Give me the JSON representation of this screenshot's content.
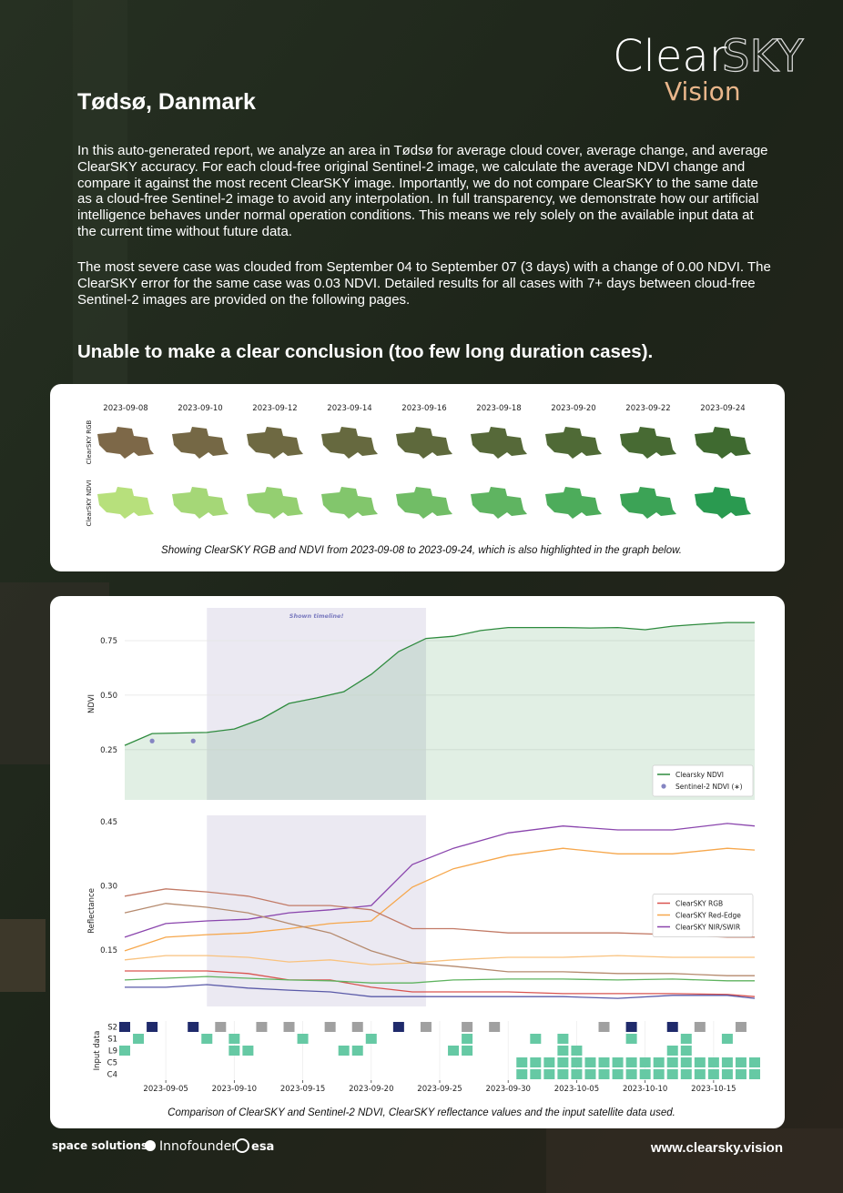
{
  "header": {
    "logo_main_1": "Clear",
    "logo_main_2": "SKY",
    "logo_sub": "Vision",
    "title": "Tødsø, Danmark"
  },
  "paragraphs": [
    "In this auto-generated report, we analyze an area in Tødsø for average cloud cover, average change, and average ClearSKY accuracy. For each cloud-free original Sentinel-2 image, we calculate the average NDVI change and compare it against the most recent ClearSKY image. Importantly, we do not compare ClearSKY to the same date as a cloud-free Sentinel-2 image to avoid any interpolation. In full transparency, we demonstrate how our artificial intelligence behaves under normal operation conditions. This means we rely solely on the available input data at the current time without future data.",
    "The most severe case was clouded from September 04 to September 07 (3 days) with a change of 0.00 NDVI. The ClearSKY error for the same case was 0.03 NDVI. Detailed results for all cases with 7+ days between cloud-free Sentinel-2 images are provided on the following pages."
  ],
  "conclusion": "Unable to make a clear conclusion (too few long duration cases).",
  "figure_1": {
    "dates": [
      "2023-09-08",
      "2023-09-10",
      "2023-09-12",
      "2023-09-14",
      "2023-09-16",
      "2023-09-18",
      "2023-09-20",
      "2023-09-22",
      "2023-09-24"
    ],
    "row_labels": [
      "ClearSKY RGB",
      "ClearSKY NDVI"
    ],
    "caption": "Showing ClearSKY RGB and NDVI from 2023-09-08 to 2023-09-24, which is also highlighted in the graph below."
  },
  "chart_data": [
    {
      "type": "line",
      "y_label": "NDVI",
      "annotation": "Shown timeline!",
      "highlight": [
        "2023-09-08",
        "2023-09-24"
      ],
      "xlim": [
        "2023-09-02",
        "2023-10-18"
      ],
      "ylim": [
        0.02,
        0.9
      ],
      "yticks": [
        0.25,
        {
          "value": 0.5,
          "label": "0.50"
        },
        0.75
      ],
      "grid": true,
      "legend": "lower right",
      "series": [
        {
          "name": "Clearsky NDVI",
          "color": "#2e8b3e",
          "fill": true,
          "x": [
            "2023-09-02",
            "2023-09-04",
            "2023-09-08",
            "2023-09-10",
            "2023-09-12",
            "2023-09-14",
            "2023-09-16",
            "2023-09-18",
            "2023-09-20",
            "2023-09-22",
            "2023-09-24",
            "2023-09-26",
            "2023-09-28",
            "2023-09-30",
            "2023-10-04",
            "2023-10-06",
            "2023-10-08",
            "2023-10-10",
            "2023-10-12",
            "2023-10-14",
            "2023-10-16",
            "2023-10-18"
          ],
          "values": [
            0.27,
            0.324,
            0.329,
            0.345,
            0.391,
            0.462,
            0.487,
            0.516,
            0.595,
            0.7,
            0.76,
            0.77,
            0.796,
            0.81,
            0.81,
            0.808,
            0.81,
            0.8,
            0.816,
            0.825,
            0.833,
            0.833
          ]
        },
        {
          "name": "Sentinel-2 NDVI (∗)",
          "color": "#8585c2",
          "type": "scatter",
          "x": [
            "2023-09-04",
            "2023-09-07"
          ],
          "values": [
            0.29,
            0.29
          ]
        }
      ]
    },
    {
      "type": "line",
      "y_label": "Reflectance",
      "highlight": [
        "2023-09-08",
        "2023-09-24"
      ],
      "xlim": [
        "2023-09-02",
        "2023-10-18"
      ],
      "ylim": [
        0.018,
        0.465
      ],
      "yticks": [
        0.15,
        {
          "value": 0.3,
          "label": "0.30"
        },
        0.45
      ],
      "grid": false,
      "legend": "center right",
      "x": [
        "2023-09-02",
        "2023-09-05",
        "2023-09-08",
        "2023-09-11",
        "2023-09-14",
        "2023-09-17",
        "2023-09-20",
        "2023-09-23",
        "2023-09-26",
        "2023-09-30",
        "2023-10-04",
        "2023-10-08",
        "2023-10-12",
        "2023-10-16",
        "2023-10-18"
      ],
      "series": [
        {
          "name": "ClearSKY RGB",
          "color": "#d9534f",
          "values": [
            0.101,
            0.101,
            0.101,
            0.095,
            0.08,
            0.08,
            0.063,
            0.052,
            0.052,
            0.052,
            0.048,
            0.048,
            0.048,
            0.046,
            0.041
          ]
        },
        {
          "name": "ClearSKY Red-Edge",
          "color": "#f6a74c",
          "values": [
            0.148,
            0.18,
            0.186,
            0.19,
            0.2,
            0.212,
            0.218,
            0.297,
            0.34,
            0.371,
            0.388,
            0.375,
            0.375,
            0.388,
            0.384
          ]
        },
        {
          "name": "ClearSKY NIR/SWIR",
          "color": "#8a45ad",
          "values": [
            0.18,
            0.212,
            0.218,
            0.222,
            0.237,
            0.244,
            0.254,
            0.35,
            0.388,
            0.424,
            0.44,
            0.431,
            0.431,
            0.446,
            0.44
          ]
        },
        {
          "color": "#f9c27e",
          "values": [
            0.127,
            0.137,
            0.137,
            0.133,
            0.122,
            0.127,
            0.116,
            0.12,
            0.127,
            0.133,
            0.133,
            0.137,
            0.133,
            0.133,
            0.133
          ]
        },
        {
          "color": "#c27a66",
          "values": [
            0.276,
            0.293,
            0.286,
            0.276,
            0.254,
            0.254,
            0.244,
            0.2,
            0.2,
            0.19,
            0.19,
            0.19,
            0.186,
            0.18,
            0.18
          ]
        },
        {
          "color": "#b58a6e",
          "values": [
            0.237,
            0.259,
            0.25,
            0.237,
            0.212,
            0.19,
            0.148,
            0.12,
            0.112,
            0.099,
            0.099,
            0.095,
            0.095,
            0.09,
            0.09
          ]
        },
        {
          "color": "#5fb35f",
          "values": [
            0.08,
            0.084,
            0.088,
            0.084,
            0.08,
            0.078,
            0.073,
            0.073,
            0.08,
            0.082,
            0.082,
            0.08,
            0.082,
            0.078,
            0.078
          ]
        },
        {
          "color": "#5a5aa8",
          "values": [
            0.063,
            0.063,
            0.069,
            0.061,
            0.056,
            0.052,
            0.041,
            0.041,
            0.041,
            0.041,
            0.041,
            0.037,
            0.044,
            0.044,
            0.037
          ]
        }
      ]
    },
    {
      "type": "tiles",
      "y_label": "Input data",
      "rows": [
        "S2",
        "S1",
        "L9",
        "C5",
        "C4"
      ],
      "xlim": [
        "2023-09-02",
        "2023-10-18"
      ],
      "xticks": [
        "2023-09-05",
        "2023-09-10",
        "2023-09-15",
        "2023-09-20",
        "2023-09-25",
        "2023-09-30",
        "2023-10-05",
        "2023-10-10",
        "2023-10-15"
      ],
      "series": [
        {
          "row": 0,
          "color": "#a0a0a0",
          "x": [
            "2023-09-09",
            "2023-09-12",
            "2023-09-14",
            "2023-09-17",
            "2023-09-19",
            "2023-09-24",
            "2023-09-27",
            "2023-09-29",
            "2023-10-07",
            "2023-10-14",
            "2023-10-17"
          ]
        },
        {
          "row": 0,
          "color": "#1f2a6b",
          "x": [
            "2023-09-02",
            "2023-09-04",
            "2023-09-07",
            "2023-09-22",
            "2023-10-09",
            "2023-10-12"
          ]
        },
        {
          "row": 1,
          "color": "#66c9a4",
          "x": [
            "2023-09-03",
            "2023-09-08",
            "2023-09-10",
            "2023-09-15",
            "2023-09-20",
            "2023-09-27",
            "2023-10-02",
            "2023-10-04",
            "2023-10-09",
            "2023-10-13",
            "2023-10-16"
          ]
        },
        {
          "row": 2,
          "color": "#66c9a4",
          "x": [
            "2023-09-02",
            "2023-09-10",
            "2023-09-11",
            "2023-09-18",
            "2023-09-19",
            "2023-09-26",
            "2023-09-27",
            "2023-10-04",
            "2023-10-05",
            "2023-10-12",
            "2023-10-13"
          ]
        },
        {
          "row": 3,
          "color": "#66c9a4",
          "x": [
            "2023-10-01",
            "2023-10-02",
            "2023-10-03",
            "2023-10-04",
            "2023-10-05",
            "2023-10-06",
            "2023-10-07",
            "2023-10-08",
            "2023-10-09",
            "2023-10-10",
            "2023-10-11",
            "2023-10-12",
            "2023-10-13",
            "2023-10-14",
            "2023-10-15",
            "2023-10-16",
            "2023-10-17",
            "2023-10-18"
          ]
        },
        {
          "row": 4,
          "color": "#66c9a4",
          "x": [
            "2023-10-01",
            "2023-10-02",
            "2023-10-03",
            "2023-10-04",
            "2023-10-05",
            "2023-10-06",
            "2023-10-07",
            "2023-10-08",
            "2023-10-09",
            "2023-10-10",
            "2023-10-11",
            "2023-10-12",
            "2023-10-13",
            "2023-10-14",
            "2023-10-15",
            "2023-10-16",
            "2023-10-17",
            "2023-10-18"
          ]
        }
      ]
    }
  ],
  "figure_2_caption": "Comparison of ClearSKY and Sentinel-2 NDVI, ClearSKY reflectance values and the input satellite data used.",
  "footer": {
    "partners": [
      "space solutions",
      "Innofounder",
      "esa"
    ],
    "url": "www.clearsky.vision"
  }
}
